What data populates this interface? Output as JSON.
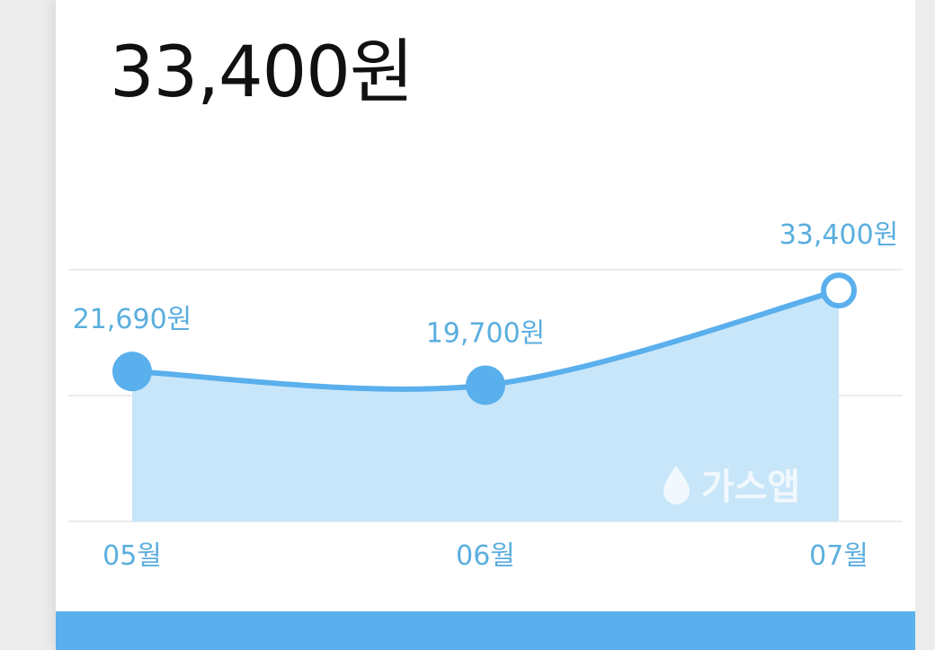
{
  "header": {
    "amount": "33,400원"
  },
  "chart_data": {
    "type": "area",
    "categories": [
      "05월",
      "06월",
      "07월"
    ],
    "values": [
      21690,
      19700,
      33400
    ],
    "value_labels": [
      "21,690원",
      "19,700원",
      "33,400원"
    ],
    "color": "#5aafed",
    "fill": "#c8e6f9",
    "ylim": [
      0,
      36400
    ],
    "watermark": "가스앱"
  }
}
